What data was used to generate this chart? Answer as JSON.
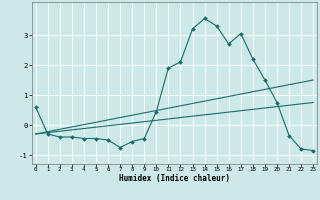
{
  "xlabel": "Humidex (Indice chaleur)",
  "x_values": [
    0,
    1,
    2,
    3,
    4,
    5,
    6,
    7,
    8,
    9,
    10,
    11,
    12,
    13,
    14,
    15,
    16,
    17,
    18,
    19,
    20,
    21,
    22,
    23
  ],
  "line1": [
    0.6,
    -0.3,
    -0.4,
    -0.4,
    -0.45,
    -0.45,
    -0.5,
    -0.75,
    -0.55,
    -0.45,
    0.45,
    1.9,
    2.1,
    3.2,
    3.55,
    3.3,
    2.7,
    3.05,
    2.2,
    1.5,
    0.75,
    -0.35,
    -0.8,
    -0.85
  ],
  "line2_x": [
    0,
    23
  ],
  "line2_y": [
    -0.3,
    1.5
  ],
  "line3_x": [
    0,
    23
  ],
  "line3_y": [
    -0.3,
    0.75
  ],
  "bg_color": "#cce8e8",
  "grid_color": "#ffffff",
  "line_color": "#1a6b6b",
  "ylim": [
    -1.3,
    4.1
  ],
  "xlim": [
    -0.3,
    23.3
  ],
  "yticks": [
    -1,
    0,
    1,
    2,
    3
  ],
  "xticks": [
    0,
    1,
    2,
    3,
    4,
    5,
    6,
    7,
    8,
    9,
    10,
    11,
    12,
    13,
    14,
    15,
    16,
    17,
    18,
    19,
    20,
    21,
    22,
    23
  ]
}
